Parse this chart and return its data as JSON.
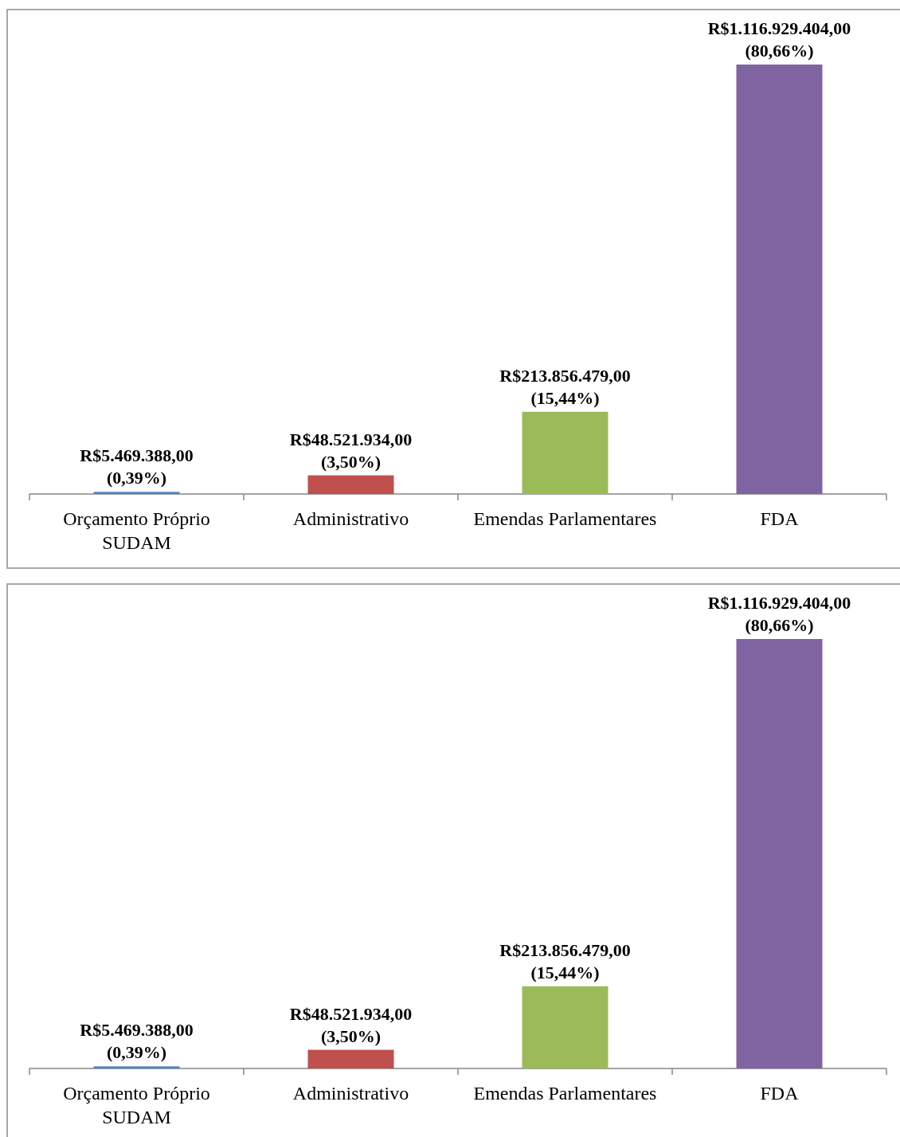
{
  "chart_data": [
    {
      "type": "bar",
      "categories": [
        "Orçamento Próprio SUDAM",
        "Administrativo",
        "Emendas Parlamentares",
        "FDA"
      ],
      "values": [
        5469388,
        48521934,
        213856479,
        1116929404
      ],
      "colors": [
        "#4f81bd",
        "#c0504d",
        "#9bbb59",
        "#8064a2"
      ],
      "value_labels": [
        "R$5.469.388,00 (0,39%)",
        "R$48.521.934,00 (3,50%)",
        "R$213.856.479,00 (15,44%)",
        "R$1.116.929.404,00 (80,66%)"
      ]
    },
    {
      "type": "bar",
      "categories": [
        "Orçamento Próprio SUDAM",
        "Administrativo",
        "Emendas Parlamentares",
        "FDA"
      ],
      "values": [
        5469388,
        48521934,
        213856479,
        1116929404
      ],
      "colors": [
        "#4f81bd",
        "#c0504d",
        "#9bbb59",
        "#8064a2"
      ],
      "value_labels": [
        "R$5.469.388,00 (0,39%)",
        "R$48.521.934,00 (3,50%)",
        "R$213.856.479,00 (15,44%)",
        "R$1.116.929.404,00 (80,66%)"
      ]
    }
  ]
}
